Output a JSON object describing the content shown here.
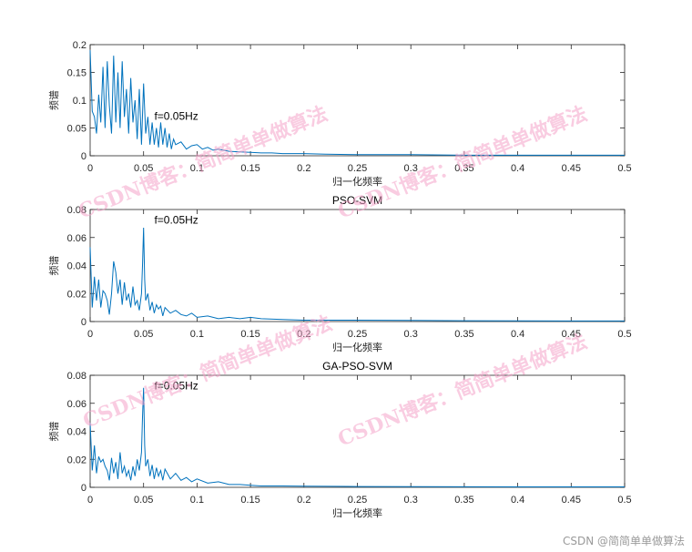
{
  "figure": {
    "credit": "CSDN @简简单单做算法",
    "watermark_text": "CSDN博客：简简单单做算法",
    "watermark_color": "#f4a3c8",
    "line_color": "#0072BD"
  },
  "chart_data": [
    {
      "type": "line",
      "title": "",
      "xlabel": "归一化频率",
      "ylabel": "频谱",
      "xlim": [
        0,
        0.5
      ],
      "ylim": [
        0,
        0.2
      ],
      "xticks": [
        "0",
        "0.05",
        "0.1",
        "0.15",
        "0.2",
        "0.25",
        "0.3",
        "0.35",
        "0.4",
        "0.45",
        "0.5"
      ],
      "yticks": [
        "0",
        "0.05",
        "0.1",
        "0.15",
        "0.2"
      ],
      "annotation": {
        "text": "f=0.05Hz",
        "x": 0.06,
        "y": 0.065
      },
      "grid": false,
      "series": [
        {
          "x": [
            0,
            0.002,
            0.004,
            0.006,
            0.008,
            0.01,
            0.012,
            0.014,
            0.016,
            0.018,
            0.02,
            0.022,
            0.024,
            0.026,
            0.028,
            0.03,
            0.032,
            0.034,
            0.036,
            0.038,
            0.04,
            0.042,
            0.044,
            0.046,
            0.048,
            0.05,
            0.052,
            0.054,
            0.056,
            0.058,
            0.06,
            0.062,
            0.064,
            0.066,
            0.068,
            0.07,
            0.072,
            0.074,
            0.076,
            0.078,
            0.08,
            0.085,
            0.09,
            0.095,
            0.1,
            0.105,
            0.11,
            0.115,
            0.12,
            0.13,
            0.14,
            0.15,
            0.16,
            0.17,
            0.18,
            0.2,
            0.22,
            0.25,
            0.3,
            0.35,
            0.4,
            0.45,
            0.5
          ],
          "y": [
            0.19,
            0.08,
            0.07,
            0.04,
            0.11,
            0.06,
            0.16,
            0.05,
            0.17,
            0.09,
            0.04,
            0.18,
            0.06,
            0.15,
            0.05,
            0.17,
            0.07,
            0.12,
            0.04,
            0.14,
            0.06,
            0.1,
            0.03,
            0.12,
            0.02,
            0.13,
            0.04,
            0.07,
            0.02,
            0.06,
            0.02,
            0.05,
            0.015,
            0.06,
            0.02,
            0.05,
            0.015,
            0.04,
            0.012,
            0.03,
            0.02,
            0.025,
            0.012,
            0.018,
            0.02,
            0.012,
            0.015,
            0.01,
            0.012,
            0.008,
            0.007,
            0.006,
            0.005,
            0.005,
            0.004,
            0.004,
            0.003,
            0.002,
            0.002,
            0.001,
            0.001,
            0.001,
            0.001
          ]
        }
      ]
    },
    {
      "type": "line",
      "title": "PSO-SVM",
      "xlabel": "归一化频率",
      "ylabel": "频谱",
      "xlim": [
        0,
        0.5
      ],
      "ylim": [
        0,
        0.08
      ],
      "xticks": [
        "0",
        "0.05",
        "0.1",
        "0.15",
        "0.2",
        "0.25",
        "0.3",
        "0.35",
        "0.4",
        "0.45",
        "0.5"
      ],
      "yticks": [
        "0",
        "0.02",
        "0.04",
        "0.06",
        "0.08"
      ],
      "annotation": {
        "text": "f=0.05Hz",
        "x": 0.06,
        "y": 0.07
      },
      "grid": false,
      "series": [
        {
          "x": [
            0,
            0.002,
            0.004,
            0.006,
            0.008,
            0.01,
            0.012,
            0.014,
            0.016,
            0.018,
            0.02,
            0.022,
            0.024,
            0.026,
            0.028,
            0.03,
            0.032,
            0.034,
            0.036,
            0.038,
            0.04,
            0.042,
            0.044,
            0.046,
            0.048,
            0.049,
            0.05,
            0.051,
            0.052,
            0.054,
            0.056,
            0.058,
            0.06,
            0.062,
            0.064,
            0.066,
            0.068,
            0.07,
            0.075,
            0.08,
            0.085,
            0.09,
            0.095,
            0.1,
            0.11,
            0.12,
            0.13,
            0.14,
            0.15,
            0.16,
            0.18,
            0.2,
            0.25,
            0.3,
            0.35,
            0.4,
            0.45,
            0.5
          ],
          "y": [
            0.053,
            0.01,
            0.032,
            0.015,
            0.03,
            0.01,
            0.022,
            0.02,
            0.015,
            0.005,
            0.02,
            0.043,
            0.035,
            0.02,
            0.03,
            0.012,
            0.028,
            0.015,
            0.02,
            0.01,
            0.025,
            0.012,
            0.015,
            0.008,
            0.02,
            0.04,
            0.067,
            0.03,
            0.015,
            0.02,
            0.008,
            0.014,
            0.006,
            0.012,
            0.009,
            0.011,
            0.004,
            0.01,
            0.006,
            0.008,
            0.005,
            0.004,
            0.006,
            0.003,
            0.004,
            0.002,
            0.003,
            0.002,
            0.003,
            0.002,
            0.0015,
            0.001,
            0.001,
            0.0008,
            0.0006,
            0.0005,
            0.0004,
            0.0004
          ]
        }
      ]
    },
    {
      "type": "line",
      "title": "GA-PSO-SVM",
      "xlabel": "归一化频率",
      "ylabel": "频谱",
      "xlim": [
        0,
        0.5
      ],
      "ylim": [
        0,
        0.08
      ],
      "xticks": [
        "0",
        "0.05",
        "0.1",
        "0.15",
        "0.2",
        "0.25",
        "0.3",
        "0.35",
        "0.4",
        "0.45",
        "0.5"
      ],
      "yticks": [
        "0",
        "0.02",
        "0.04",
        "0.06",
        "0.08"
      ],
      "annotation": {
        "text": "f=0.05Hz",
        "x": 0.06,
        "y": 0.07
      },
      "grid": false,
      "series": [
        {
          "x": [
            0,
            0.002,
            0.004,
            0.006,
            0.008,
            0.01,
            0.012,
            0.014,
            0.016,
            0.018,
            0.02,
            0.022,
            0.024,
            0.026,
            0.028,
            0.03,
            0.032,
            0.034,
            0.036,
            0.038,
            0.04,
            0.042,
            0.044,
            0.046,
            0.048,
            0.049,
            0.05,
            0.051,
            0.052,
            0.054,
            0.056,
            0.058,
            0.06,
            0.062,
            0.064,
            0.066,
            0.068,
            0.07,
            0.075,
            0.08,
            0.085,
            0.09,
            0.095,
            0.1,
            0.11,
            0.12,
            0.13,
            0.14,
            0.15,
            0.16,
            0.18,
            0.2,
            0.25,
            0.3,
            0.35,
            0.4,
            0.45,
            0.5
          ],
          "y": [
            0.046,
            0.012,
            0.03,
            0.01,
            0.022,
            0.018,
            0.02,
            0.015,
            0.012,
            0.005,
            0.021,
            0.01,
            0.018,
            0.006,
            0.025,
            0.01,
            0.015,
            0.008,
            0.012,
            0.005,
            0.015,
            0.008,
            0.02,
            0.012,
            0.025,
            0.05,
            0.071,
            0.03,
            0.015,
            0.02,
            0.008,
            0.016,
            0.006,
            0.014,
            0.008,
            0.012,
            0.005,
            0.013,
            0.006,
            0.01,
            0.005,
            0.007,
            0.004,
            0.006,
            0.003,
            0.004,
            0.002,
            0.002,
            0.0015,
            0.001,
            0.001,
            0.0008,
            0.0006,
            0.0005,
            0.0004,
            0.0003,
            0.0003,
            0.0003
          ]
        }
      ]
    }
  ]
}
